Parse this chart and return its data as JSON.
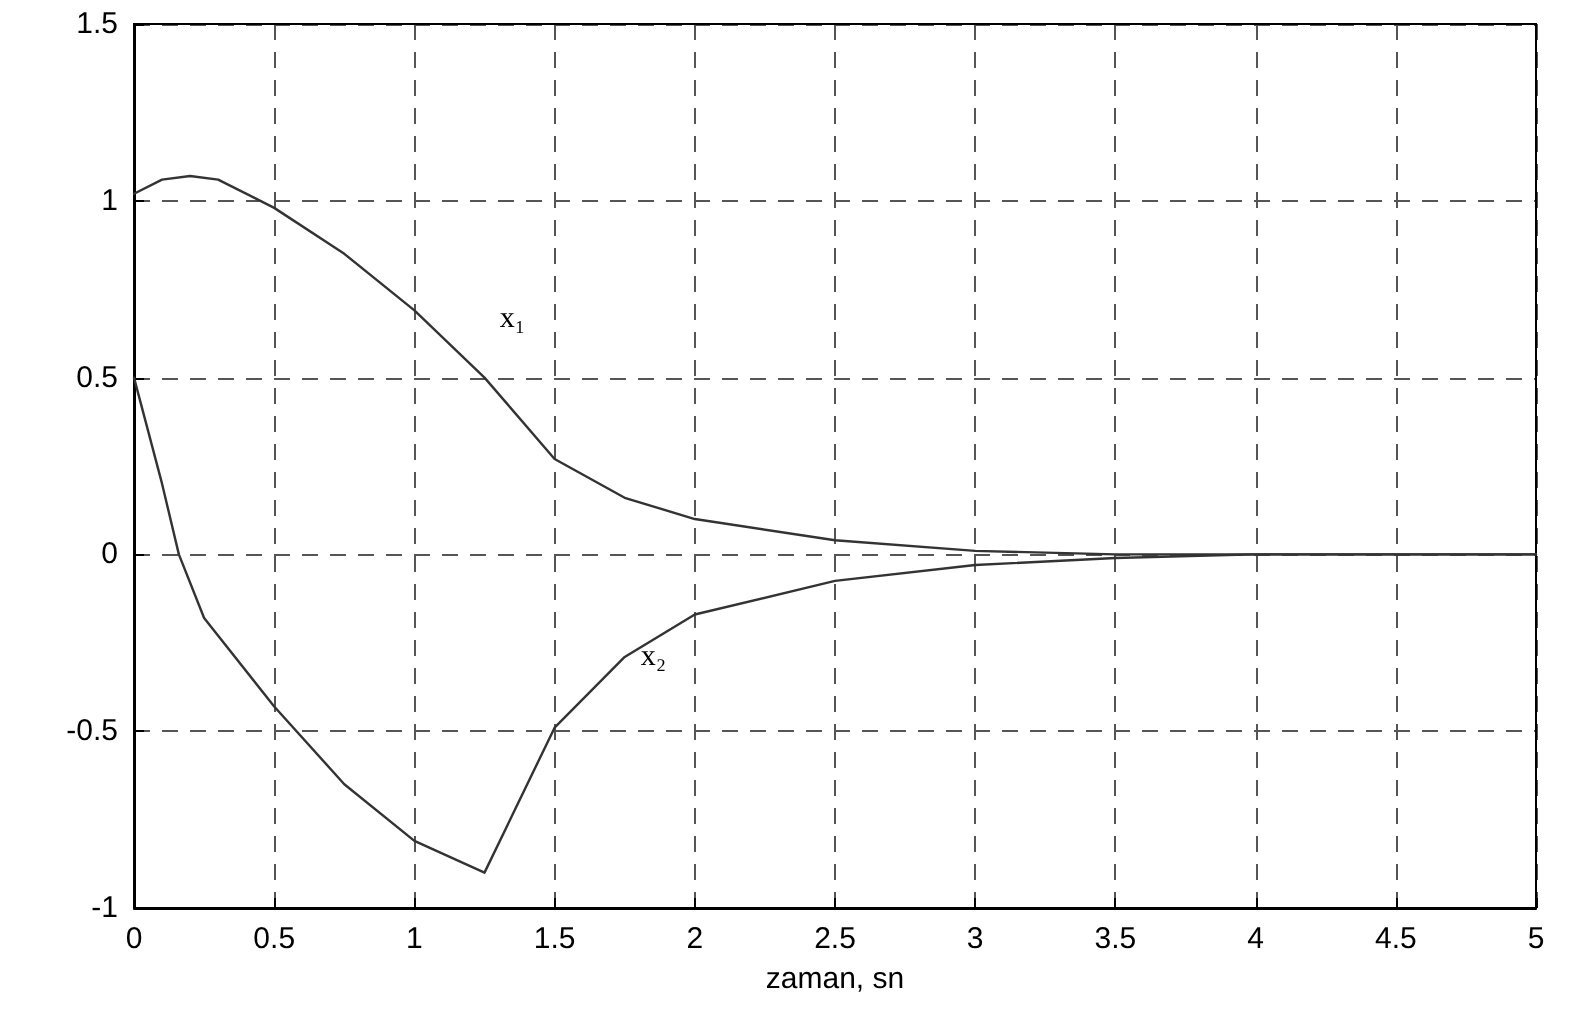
{
  "chart_data": {
    "type": "line",
    "xlabel": "zaman, sn",
    "x": [
      0,
      0.1,
      0.2,
      0.3,
      0.5,
      0.75,
      1,
      1.25,
      1.5,
      1.75,
      2,
      2.5,
      3,
      3.5,
      4,
      4.5,
      5
    ],
    "series": [
      {
        "name": "x₁",
        "color": "#333333",
        "values": [
          1.02,
          1.06,
          1.07,
          1.06,
          0.98,
          0.85,
          0.69,
          0.5,
          0.27,
          0.16,
          0.1,
          0.04,
          0.01,
          0,
          0,
          0,
          0
        ]
      },
      {
        "name": "x₂",
        "color": "#333333",
        "x": [
          0,
          0.1,
          0.16,
          0.25,
          0.5,
          0.75,
          1,
          1.25,
          1.5,
          1.75,
          2,
          2.5,
          3,
          3.5,
          4,
          4.5,
          5
        ],
        "values": [
          0.5,
          0.2,
          0,
          -0.18,
          -0.43,
          -0.65,
          -0.81,
          -0.9,
          -0.49,
          -0.29,
          -0.17,
          -0.075,
          -0.03,
          -0.01,
          0,
          0,
          0
        ]
      }
    ],
    "xlim": [
      0,
      5
    ],
    "xticks": [
      0,
      0.5,
      1,
      1.5,
      2,
      2.5,
      3,
      3.5,
      4,
      4.5,
      5
    ],
    "ylim": [
      -1,
      1.5
    ],
    "yticks": [
      -1,
      -0.5,
      0,
      0.5,
      1,
      1.5
    ],
    "grid": true,
    "legend": false,
    "marker": "none",
    "line_style": "solid"
  }
}
